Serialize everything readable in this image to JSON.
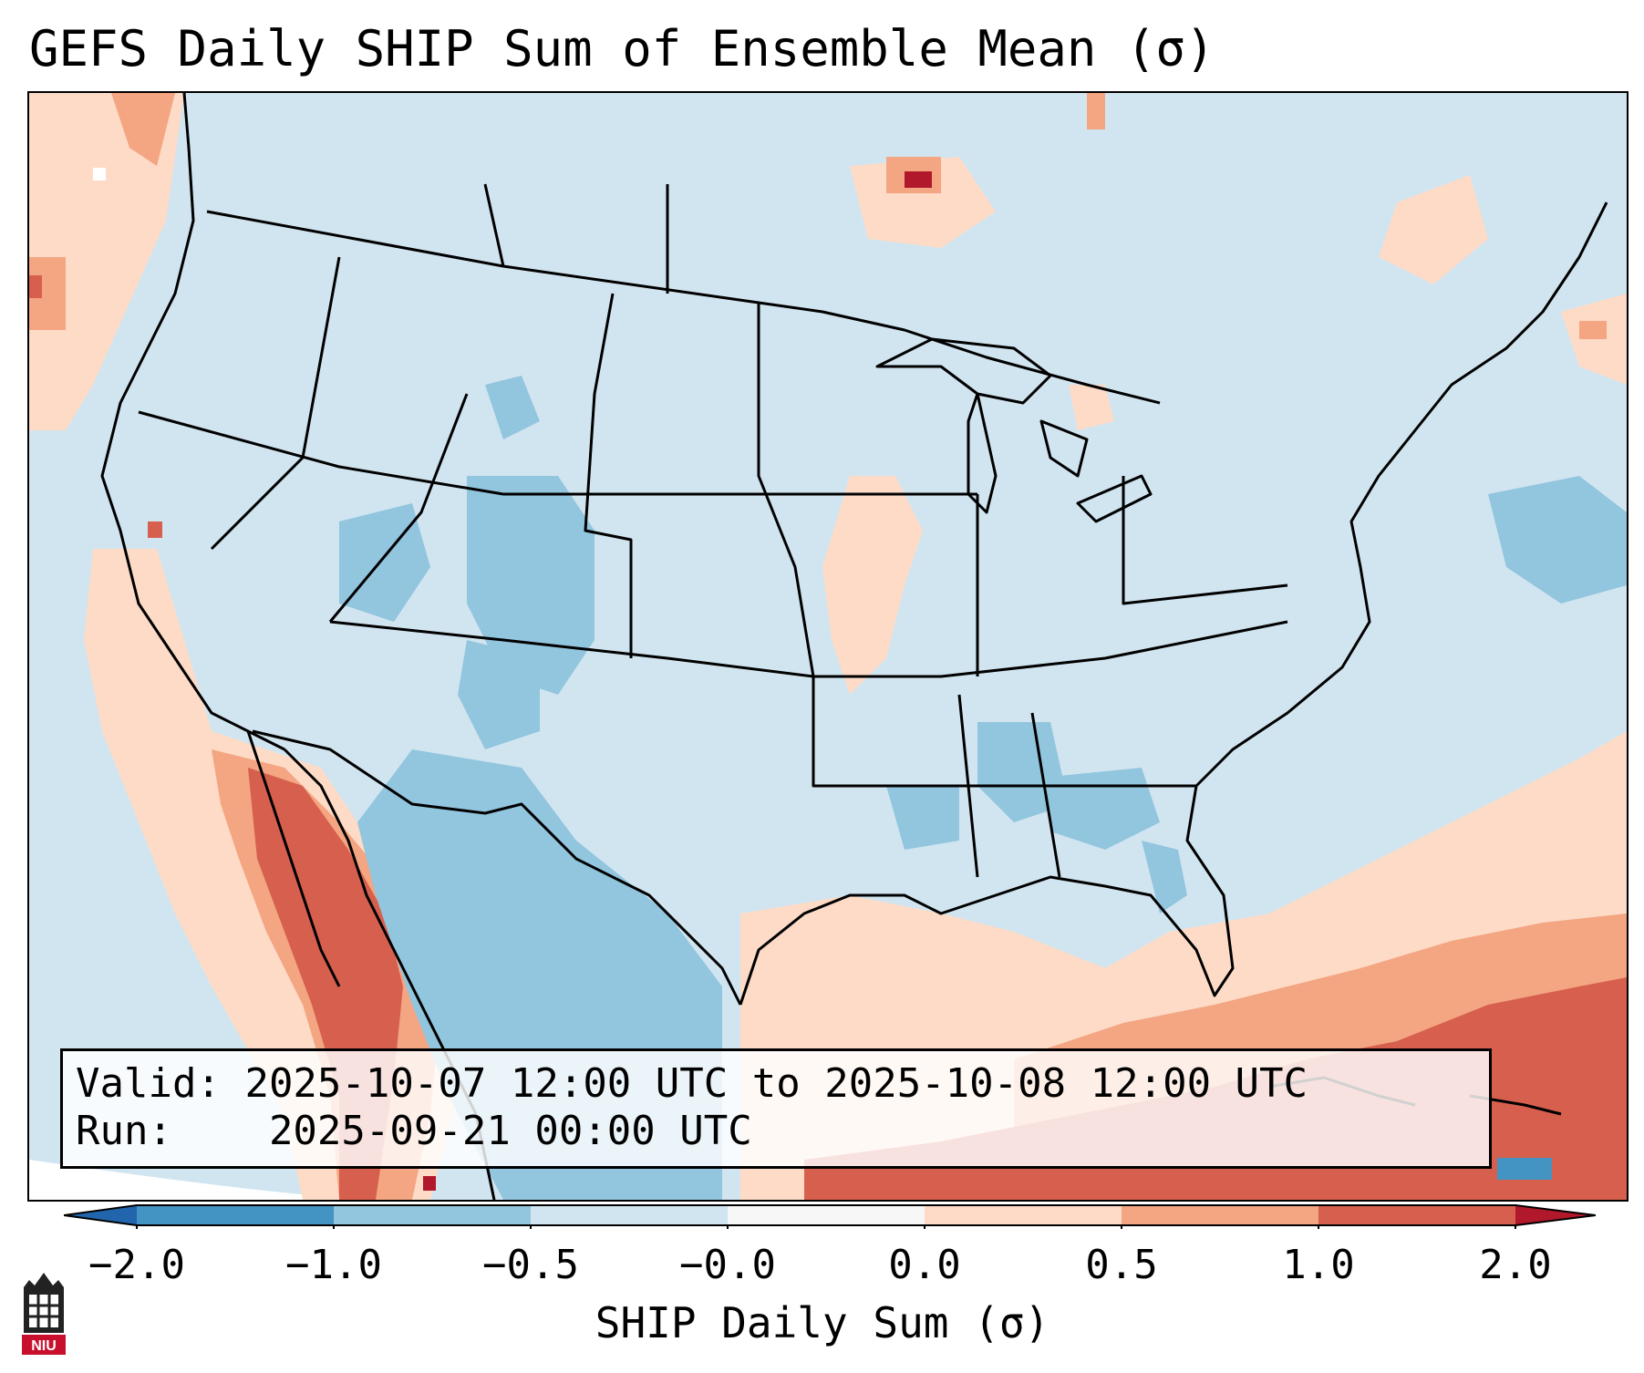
{
  "title": "GEFS Daily SHIP Sum of Ensemble Mean (σ)",
  "info": {
    "valid_label": "Valid:",
    "valid_value": "2025-10-07 12:00 UTC to 2025-10-08 12:00 UTC",
    "run_label": "Run:",
    "run_value": "2025-09-21 00:00 UTC"
  },
  "colorbar": {
    "label": "SHIP Daily Sum (σ)",
    "ticks": [
      "−2.0",
      "−1.0",
      "−0.5",
      "−0.0",
      "0.0",
      "0.5",
      "1.0",
      "2.0"
    ],
    "colors": {
      "below_min": "#2166ac",
      "neg_2_to_neg_1": "#4393c3",
      "neg_1_to_neg_05": "#92c5de",
      "neg_05_to_0": "#d1e5f0",
      "zero": "#f7f7f7",
      "pos_0_to_05": "#fddbc7",
      "pos_05_to_1": "#f4a582",
      "pos_1_to_2": "#d6604d",
      "above_max": "#b2182b"
    }
  },
  "logo_text": "NIU"
}
